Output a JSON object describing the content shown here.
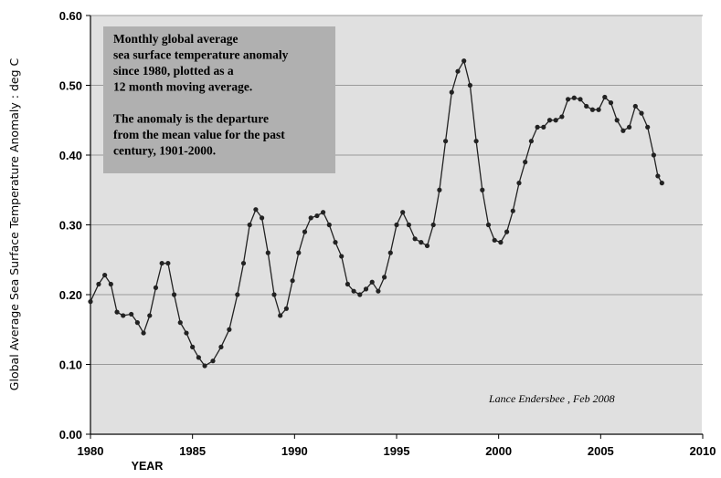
{
  "chart_data": {
    "type": "line",
    "ylabel": "Global Average Sea Surface Temperature Anomaly : deg C",
    "xlabel": "YEAR",
    "xlim": [
      1980,
      2010
    ],
    "ylim": [
      0.0,
      0.6
    ],
    "x_ticks": [
      "1980",
      "1985",
      "1990",
      "1995",
      "2000",
      "2005",
      "2010"
    ],
    "y_ticks": [
      "0.00",
      "0.10",
      "0.20",
      "0.30",
      "0.40",
      "0.50",
      "0.60"
    ],
    "grid": true,
    "marker": "filled-circle",
    "annotation_lines": [
      "Monthly global  average",
      " sea surface temperature anomaly",
      "since 1980,  plotted as a",
      "12 month moving average.",
      "",
      "The anomaly is the departure",
      "from the mean value for the past",
      "century, 1901-2000."
    ],
    "credit": "Lance Endersbee ,  Feb 2008",
    "series": [
      {
        "x": [
          1980.0,
          1980.4,
          1980.7,
          1981.0,
          1981.3,
          1981.6,
          1982.0,
          1982.3,
          1982.6,
          1982.9,
          1983.2,
          1983.5,
          1983.8,
          1984.1,
          1984.4,
          1984.7,
          1985.0,
          1985.3,
          1985.6,
          1986.0,
          1986.4,
          1986.8,
          1987.2,
          1987.5,
          1987.8,
          1988.1,
          1988.4,
          1988.7,
          1989.0,
          1989.3,
          1989.6,
          1989.9,
          1990.2,
          1990.5,
          1990.8,
          1991.1,
          1991.4,
          1991.7,
          1992.0,
          1992.3,
          1992.6,
          1992.9,
          1993.2,
          1993.5,
          1993.8,
          1994.1,
          1994.4,
          1994.7,
          1995.0,
          1995.3,
          1995.6,
          1995.9,
          1996.2,
          1996.5,
          1996.8,
          1997.1,
          1997.4,
          1997.7,
          1998.0,
          1998.3,
          1998.6,
          1998.9,
          1999.2,
          1999.5,
          1999.8,
          2000.1,
          2000.4,
          2000.7,
          2001.0,
          2001.3,
          2001.6,
          2001.9,
          2002.2,
          2002.5,
          2002.8,
          2003.1,
          2003.4,
          2003.7,
          2004.0,
          2004.3,
          2004.6,
          2004.9,
          2005.2,
          2005.5,
          2005.8,
          2006.1,
          2006.4,
          2006.7,
          2007.0,
          2007.3,
          2007.6,
          2007.8,
          2008.0
        ],
        "values": [
          0.19,
          0.215,
          0.228,
          0.215,
          0.175,
          0.17,
          0.172,
          0.16,
          0.145,
          0.17,
          0.21,
          0.245,
          0.245,
          0.2,
          0.16,
          0.145,
          0.125,
          0.11,
          0.098,
          0.105,
          0.125,
          0.15,
          0.2,
          0.245,
          0.3,
          0.322,
          0.31,
          0.26,
          0.2,
          0.17,
          0.18,
          0.22,
          0.26,
          0.29,
          0.31,
          0.313,
          0.318,
          0.3,
          0.275,
          0.255,
          0.215,
          0.205,
          0.2,
          0.208,
          0.218,
          0.205,
          0.225,
          0.26,
          0.3,
          0.318,
          0.3,
          0.28,
          0.275,
          0.27,
          0.3,
          0.35,
          0.42,
          0.49,
          0.52,
          0.535,
          0.5,
          0.42,
          0.35,
          0.3,
          0.278,
          0.275,
          0.29,
          0.32,
          0.36,
          0.39,
          0.42,
          0.44,
          0.44,
          0.45,
          0.45,
          0.455,
          0.48,
          0.482,
          0.48,
          0.47,
          0.465,
          0.465,
          0.483,
          0.475,
          0.45,
          0.435,
          0.44,
          0.47,
          0.46,
          0.44,
          0.4,
          0.37,
          0.36
        ]
      }
    ]
  }
}
